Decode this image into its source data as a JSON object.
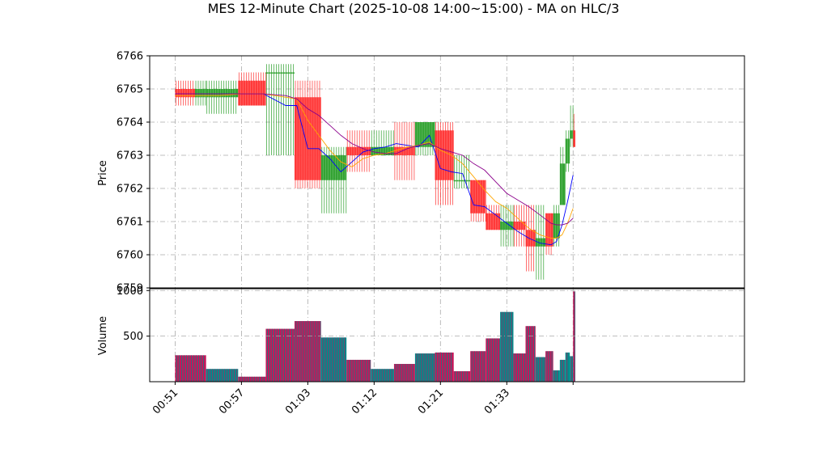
{
  "chart_data": {
    "type": "candlestick",
    "title": "MES 12-Minute Chart (2025-10-08 14:00~15:00) - MA on HLC/3",
    "colors": {
      "up": "#2ca02c",
      "down": "#ff3333",
      "ma_fast": "#0000ff",
      "ma_mid": "#ffa500",
      "ma_slow": "#8b008b",
      "volume_a": "#c2185b",
      "volume_b": "#008b8b",
      "grid": "#aaaaaa"
    },
    "price_panel": {
      "ylabel": "Price",
      "ylim": [
        6759,
        6766
      ],
      "yticks": [
        "6759",
        "6760",
        "6761",
        "6762",
        "6763",
        "6764",
        "6765",
        "6766"
      ],
      "grid": true
    },
    "volume_panel": {
      "ylabel": "Volume",
      "ylim": [
        0,
        1020
      ],
      "yticks": [
        "500",
        "1000"
      ],
      "grid": true
    },
    "x_axis": {
      "range": [
        48.7,
        102.5
      ],
      "ticks": [
        {
          "x": 51,
          "label": "00:51"
        },
        {
          "x": 57,
          "label": "00:57"
        },
        {
          "x": 63,
          "label": "01:03"
        },
        {
          "x": 69,
          "label": "01:12"
        },
        {
          "x": 75,
          "label": "01:21"
        },
        {
          "x": 81,
          "label": "01:33"
        },
        {
          "x": 87,
          "label": ""
        }
      ]
    },
    "candles": [
      {
        "x0": 51.0,
        "x1": 52.8,
        "open": 6765.0,
        "high": 6765.25,
        "low": 6764.5,
        "close": 6764.75
      },
      {
        "x0": 52.8,
        "x1": 53.8,
        "open": 6764.75,
        "high": 6765.25,
        "low": 6764.5,
        "close": 6765.0
      },
      {
        "x0": 53.8,
        "x1": 56.7,
        "open": 6764.75,
        "high": 6765.25,
        "low": 6764.25,
        "close": 6765.0
      },
      {
        "x0": 56.7,
        "x1": 59.2,
        "open": 6765.25,
        "high": 6765.5,
        "low": 6764.5,
        "close": 6764.5
      },
      {
        "x0": 59.2,
        "x1": 61.8,
        "open": 6765.5,
        "high": 6765.75,
        "low": 6763.0,
        "close": 6765.5
      },
      {
        "x0": 61.8,
        "x1": 64.2,
        "open": 6764.75,
        "high": 6765.25,
        "low": 6762.0,
        "close": 6762.25
      },
      {
        "x0": 64.2,
        "x1": 66.5,
        "open": 6762.25,
        "high": 6763.25,
        "low": 6761.25,
        "close": 6763.0
      },
      {
        "x0": 66.5,
        "x1": 68.7,
        "open": 6763.25,
        "high": 6763.75,
        "low": 6762.5,
        "close": 6763.0
      },
      {
        "x0": 68.7,
        "x1": 70.8,
        "open": 6763.0,
        "high": 6763.75,
        "low": 6763.0,
        "close": 6763.25
      },
      {
        "x0": 70.8,
        "x1": 72.7,
        "open": 6763.25,
        "high": 6764.0,
        "low": 6762.25,
        "close": 6763.0
      },
      {
        "x0": 72.7,
        "x1": 74.5,
        "open": 6763.25,
        "high": 6764.0,
        "low": 6763.0,
        "close": 6764.0
      },
      {
        "x0": 74.5,
        "x1": 76.2,
        "open": 6763.75,
        "high": 6764.0,
        "low": 6761.5,
        "close": 6762.25
      },
      {
        "x0": 76.2,
        "x1": 77.7,
        "open": 6762.25,
        "high": 6763.0,
        "low": 6762.0,
        "close": 6762.25
      },
      {
        "x0": 77.7,
        "x1": 79.1,
        "open": 6762.25,
        "high": 6762.25,
        "low": 6761.0,
        "close": 6761.25
      },
      {
        "x0": 79.1,
        "x1": 80.4,
        "open": 6761.25,
        "high": 6761.5,
        "low": 6760.75,
        "close": 6760.75
      },
      {
        "x0": 80.4,
        "x1": 81.6,
        "open": 6760.75,
        "high": 6761.5,
        "low": 6760.25,
        "close": 6761.0
      },
      {
        "x0": 81.6,
        "x1": 82.7,
        "open": 6761.0,
        "high": 6761.5,
        "low": 6760.25,
        "close": 6760.75
      },
      {
        "x0": 82.7,
        "x1": 83.6,
        "open": 6760.75,
        "high": 6761.5,
        "low": 6759.5,
        "close": 6760.25
      },
      {
        "x0": 83.6,
        "x1": 84.5,
        "open": 6760.25,
        "high": 6761.5,
        "low": 6759.25,
        "close": 6760.5
      },
      {
        "x0": 84.5,
        "x1": 85.2,
        "open": 6761.25,
        "high": 6761.25,
        "low": 6760.0,
        "close": 6760.25
      },
      {
        "x0": 85.2,
        "x1": 85.8,
        "open": 6760.5,
        "high": 6761.5,
        "low": 6760.25,
        "close": 6761.25
      },
      {
        "x0": 85.8,
        "x1": 86.3,
        "open": 6761.5,
        "high": 6763.25,
        "low": 6761.5,
        "close": 6762.75
      },
      {
        "x0": 86.3,
        "x1": 86.7,
        "open": 6762.75,
        "high": 6763.75,
        "low": 6762.5,
        "close": 6763.5
      },
      {
        "x0": 86.7,
        "x1": 87.0,
        "open": 6763.5,
        "high": 6764.5,
        "low": 6763.25,
        "close": 6763.75
      },
      {
        "x0": 87.0,
        "x1": 87.2,
        "open": 6763.75,
        "high": 6764.25,
        "low": 6763.25,
        "close": 6763.25
      }
    ],
    "ma_series": [
      {
        "key": "fast",
        "x": [
          51,
          53,
          55,
          57,
          59,
          61,
          62,
          63,
          64,
          65,
          66,
          67,
          68,
          69,
          70,
          71,
          72,
          73,
          74,
          75,
          76,
          77,
          78,
          79,
          80,
          81,
          82,
          83,
          84,
          85,
          85.5,
          86,
          86.5,
          87
        ],
        "y": [
          6764.85,
          6764.85,
          6764.85,
          6764.85,
          6764.85,
          6764.5,
          6764.5,
          6763.2,
          6763.2,
          6762.9,
          6762.5,
          6762.8,
          6763.1,
          6763.2,
          6763.25,
          6763.35,
          6763.3,
          6763.25,
          6763.6,
          6762.6,
          6762.5,
          6762.45,
          6761.5,
          6761.45,
          6761.2,
          6760.95,
          6760.7,
          6760.5,
          6760.35,
          6760.3,
          6760.4,
          6760.9,
          6761.6,
          6762.4
        ]
      },
      {
        "key": "mid",
        "x": [
          51,
          53,
          55,
          57,
          59,
          61,
          62,
          63,
          64,
          65,
          66,
          67,
          68,
          69,
          70,
          71,
          72,
          73,
          74,
          75,
          76,
          77,
          78,
          79,
          80,
          81,
          82,
          83,
          84,
          85,
          85.5,
          86,
          86.5,
          87
        ],
        "y": [
          6764.8,
          6764.8,
          6764.8,
          6764.85,
          6764.85,
          6764.75,
          6764.7,
          6764.05,
          6763.6,
          6763.15,
          6762.8,
          6762.65,
          6762.9,
          6763.0,
          6763.05,
          6763.15,
          6763.25,
          6763.3,
          6763.4,
          6763.15,
          6763.0,
          6762.75,
          6762.35,
          6761.95,
          6761.6,
          6761.4,
          6761.1,
          6760.8,
          6760.6,
          6760.5,
          6760.5,
          6760.6,
          6760.95,
          6761.4
        ]
      },
      {
        "key": "slow",
        "x": [
          51,
          53,
          55,
          57,
          59,
          61,
          62,
          63,
          64,
          65,
          66,
          67,
          68,
          69,
          70,
          71,
          72,
          73,
          74,
          75,
          76,
          77,
          78,
          79,
          80,
          81,
          82,
          83,
          84,
          85,
          85.5,
          86,
          86.5,
          87
        ],
        "y": [
          6764.85,
          6764.85,
          6764.85,
          6764.85,
          6764.85,
          6764.8,
          6764.7,
          6764.4,
          6764.2,
          6763.9,
          6763.6,
          6763.35,
          6763.2,
          6763.1,
          6763.05,
          6763.05,
          6763.2,
          6763.3,
          6763.35,
          6763.2,
          6763.1,
          6763.0,
          6762.75,
          6762.55,
          6762.2,
          6761.85,
          6761.65,
          6761.45,
          6761.2,
          6760.95,
          6760.9,
          6760.9,
          6760.95,
          6761.1
        ]
      }
    ],
    "volume": [
      {
        "x0": 51.0,
        "x1": 53.8,
        "v": 290,
        "c": "a"
      },
      {
        "x0": 53.8,
        "x1": 56.7,
        "v": 140,
        "c": "b"
      },
      {
        "x0": 56.7,
        "x1": 59.2,
        "v": 55,
        "c": "a"
      },
      {
        "x0": 59.2,
        "x1": 61.8,
        "v": 580,
        "c": "a"
      },
      {
        "x0": 61.8,
        "x1": 64.2,
        "v": 665,
        "c": "a"
      },
      {
        "x0": 64.2,
        "x1": 66.5,
        "v": 485,
        "c": "b"
      },
      {
        "x0": 66.5,
        "x1": 68.7,
        "v": 240,
        "c": "a"
      },
      {
        "x0": 68.7,
        "x1": 70.8,
        "v": 140,
        "c": "b"
      },
      {
        "x0": 70.8,
        "x1": 72.7,
        "v": 195,
        "c": "a"
      },
      {
        "x0": 72.7,
        "x1": 74.5,
        "v": 310,
        "c": "b"
      },
      {
        "x0": 74.5,
        "x1": 76.2,
        "v": 320,
        "c": "a"
      },
      {
        "x0": 76.2,
        "x1": 77.7,
        "v": 115,
        "c": "a"
      },
      {
        "x0": 77.7,
        "x1": 79.1,
        "v": 335,
        "c": "a"
      },
      {
        "x0": 79.1,
        "x1": 80.4,
        "v": 475,
        "c": "a"
      },
      {
        "x0": 80.4,
        "x1": 81.6,
        "v": 765,
        "c": "b"
      },
      {
        "x0": 81.6,
        "x1": 82.7,
        "v": 310,
        "c": "a"
      },
      {
        "x0": 82.7,
        "x1": 83.6,
        "v": 610,
        "c": "a"
      },
      {
        "x0": 83.6,
        "x1": 84.5,
        "v": 270,
        "c": "b"
      },
      {
        "x0": 84.5,
        "x1": 85.2,
        "v": 335,
        "c": "a"
      },
      {
        "x0": 85.2,
        "x1": 85.8,
        "v": 125,
        "c": "b"
      },
      {
        "x0": 85.8,
        "x1": 86.3,
        "v": 240,
        "c": "b"
      },
      {
        "x0": 86.3,
        "x1": 86.7,
        "v": 320,
        "c": "b"
      },
      {
        "x0": 86.7,
        "x1": 87.0,
        "v": 280,
        "c": "b"
      },
      {
        "x0": 87.0,
        "x1": 87.2,
        "v": 990,
        "c": "a"
      }
    ]
  }
}
